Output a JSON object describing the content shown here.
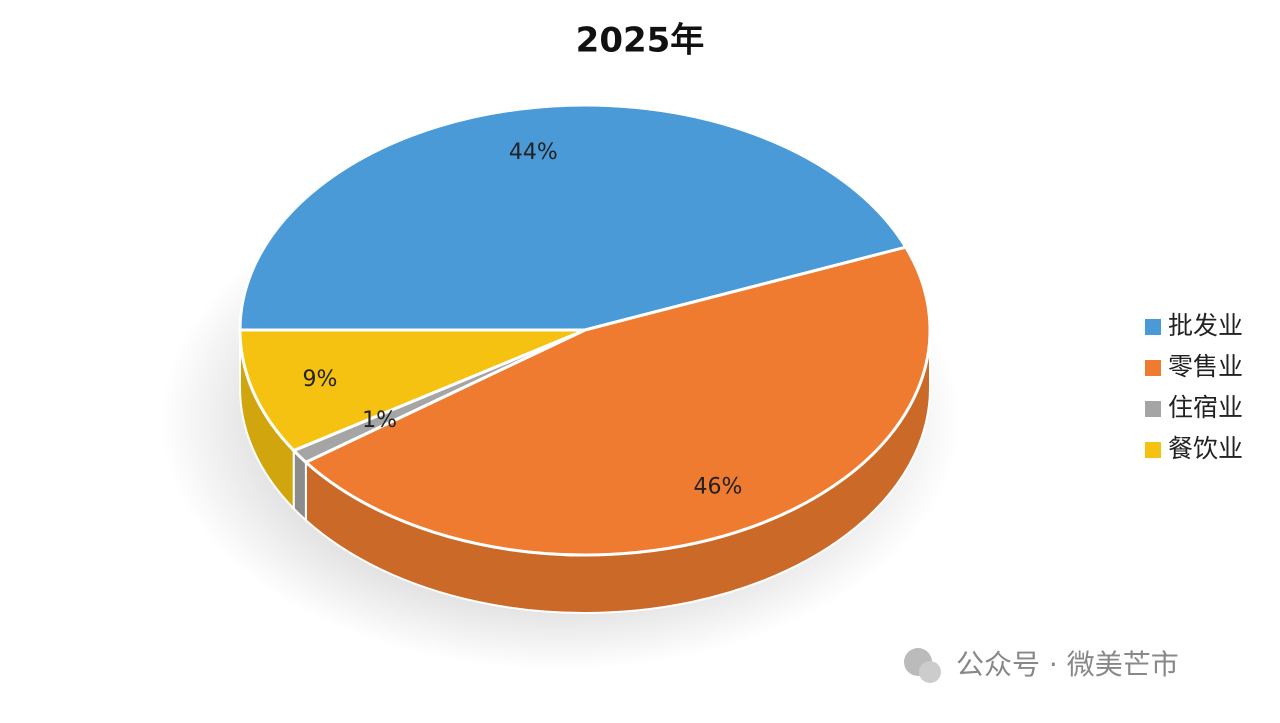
{
  "chart_data": {
    "type": "pie",
    "title": "2025年",
    "categories": [
      "批发业",
      "零售业",
      "住宿业",
      "餐饮业"
    ],
    "values": [
      44,
      46,
      1,
      9
    ],
    "value_labels": [
      "44%",
      "46%",
      "1%",
      "9%"
    ],
    "colors": [
      "#4a9ad8",
      "#ef7b30",
      "#a5a5a5",
      "#f5c211"
    ],
    "legend": "right"
  },
  "watermark": "公众号 · 微美芒市"
}
